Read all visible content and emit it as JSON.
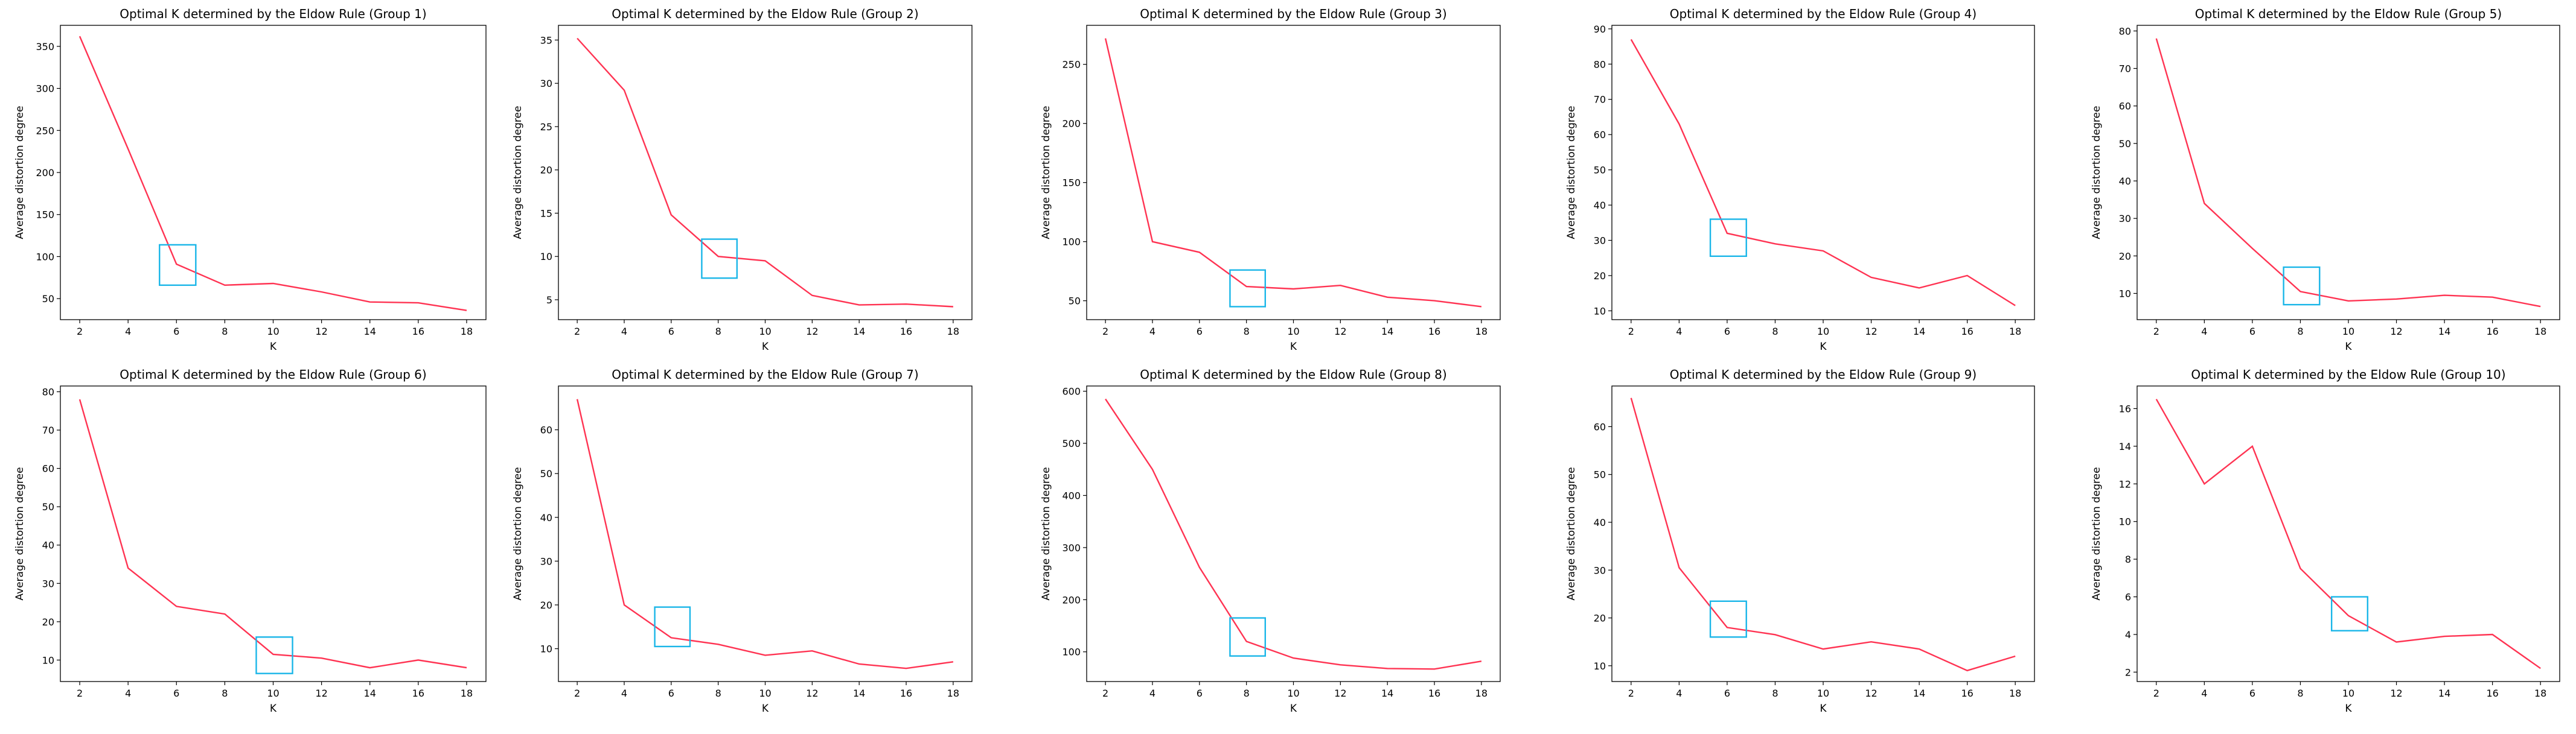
{
  "figure": {
    "line_color": "#ff3352",
    "marker_color": "#1ab6e8"
  },
  "chart_data": [
    {
      "type": "line",
      "title": "Optimal K determined by the Eldow Rule (Group 1)",
      "xlabel": "K",
      "ylabel": "Average distortion degree",
      "x": [
        2,
        4,
        6,
        8,
        10,
        12,
        14,
        16,
        18
      ],
      "y": [
        362,
        228,
        91,
        66,
        68,
        58,
        46,
        45,
        36
      ],
      "xlim": [
        1.2,
        18.8
      ],
      "ylim": [
        25,
        375
      ],
      "yticks": [
        50,
        100,
        150,
        200,
        250,
        300,
        350
      ],
      "xticks": [
        2,
        4,
        6,
        8,
        10,
        12,
        14,
        16,
        18
      ],
      "highlight": {
        "x": [
          5.3,
          6.8
        ],
        "y": [
          66,
          114
        ]
      }
    },
    {
      "type": "line",
      "title": "Optimal K determined by the Eldow Rule (Group 2)",
      "xlabel": "K",
      "ylabel": "Average distortion degree",
      "x": [
        2,
        4,
        6,
        8,
        10,
        12,
        14,
        16,
        18
      ],
      "y": [
        35.2,
        29.2,
        14.8,
        10.0,
        9.5,
        5.5,
        4.4,
        4.5,
        4.2
      ],
      "xlim": [
        1.2,
        18.8
      ],
      "ylim": [
        2.7,
        36.7
      ],
      "yticks": [
        5,
        10,
        15,
        20,
        25,
        30,
        35
      ],
      "xticks": [
        2,
        4,
        6,
        8,
        10,
        12,
        14,
        16,
        18
      ],
      "highlight": {
        "x": [
          7.3,
          8.8
        ],
        "y": [
          7.5,
          12.0
        ]
      }
    },
    {
      "type": "line",
      "title": "Optimal K determined by the Eldow Rule (Group 3)",
      "xlabel": "K",
      "ylabel": "Average distortion degree",
      "x": [
        2,
        4,
        6,
        8,
        10,
        12,
        14,
        16,
        18
      ],
      "y": [
        272,
        100,
        91,
        62,
        60,
        63,
        53,
        50,
        45
      ],
      "xlim": [
        1.2,
        18.8
      ],
      "ylim": [
        34,
        283
      ],
      "yticks": [
        50,
        100,
        150,
        200,
        250
      ],
      "xticks": [
        2,
        4,
        6,
        8,
        10,
        12,
        14,
        16,
        18
      ],
      "highlight": {
        "x": [
          7.3,
          8.8
        ],
        "y": [
          45,
          76
        ]
      }
    },
    {
      "type": "line",
      "title": "Optimal K determined by the Eldow Rule (Group 4)",
      "xlabel": "K",
      "ylabel": "Average distortion degree",
      "x": [
        2,
        4,
        6,
        8,
        10,
        12,
        14,
        16,
        18
      ],
      "y": [
        87,
        63,
        32,
        29,
        27,
        19.5,
        16.5,
        20,
        11.5
      ],
      "xlim": [
        1.2,
        18.8
      ],
      "ylim": [
        7.5,
        91
      ],
      "yticks": [
        10,
        20,
        30,
        40,
        50,
        60,
        70,
        80,
        90
      ],
      "xticks": [
        2,
        4,
        6,
        8,
        10,
        12,
        14,
        16,
        18
      ],
      "highlight": {
        "x": [
          5.3,
          6.8
        ],
        "y": [
          25.5,
          36
        ]
      }
    },
    {
      "type": "line",
      "title": "Optimal K determined by the Eldow Rule (Group 5)",
      "xlabel": "K",
      "ylabel": "Average distortion degree",
      "x": [
        2,
        4,
        6,
        8,
        10,
        12,
        14,
        16,
        18
      ],
      "y": [
        78,
        34,
        22,
        10.5,
        8,
        8.5,
        9.5,
        9,
        6.5
      ],
      "xlim": [
        1.2,
        18.8
      ],
      "ylim": [
        3,
        81.5
      ],
      "yticks": [
        10,
        20,
        30,
        40,
        50,
        60,
        70,
        80
      ],
      "xticks": [
        2,
        4,
        6,
        8,
        10,
        12,
        14,
        16,
        18
      ],
      "highlight": {
        "x": [
          7.3,
          8.8
        ],
        "y": [
          7,
          17
        ]
      }
    },
    {
      "type": "line",
      "title": "Optimal K determined by the Eldow Rule (Group 6)",
      "xlabel": "K",
      "ylabel": "Average distortion degree",
      "x": [
        2,
        4,
        6,
        8,
        10,
        12,
        14,
        16,
        18
      ],
      "y": [
        78,
        34,
        24,
        22,
        11.5,
        10.5,
        8,
        10,
        8
      ],
      "xlim": [
        1.2,
        18.8
      ],
      "ylim": [
        4.4,
        81.5
      ],
      "yticks": [
        10,
        20,
        30,
        40,
        50,
        60,
        70,
        80
      ],
      "xticks": [
        2,
        4,
        6,
        8,
        10,
        12,
        14,
        16,
        18
      ],
      "highlight": {
        "x": [
          9.3,
          10.8
        ],
        "y": [
          6.5,
          16
        ]
      }
    },
    {
      "type": "line",
      "title": "Optimal K determined by the Eldow Rule (Group 7)",
      "xlabel": "K",
      "ylabel": "Average distortion degree",
      "x": [
        2,
        4,
        6,
        8,
        10,
        12,
        14,
        16,
        18
      ],
      "y": [
        67,
        20,
        12.5,
        11,
        8.5,
        9.5,
        6.5,
        5.5,
        7
      ],
      "xlim": [
        1.2,
        18.8
      ],
      "ylim": [
        2.5,
        70
      ],
      "yticks": [
        10,
        20,
        30,
        40,
        50,
        60
      ],
      "xticks": [
        2,
        4,
        6,
        8,
        10,
        12,
        14,
        16,
        18
      ],
      "highlight": {
        "x": [
          5.3,
          6.8
        ],
        "y": [
          10.5,
          19.5
        ]
      }
    },
    {
      "type": "line",
      "title": "Optimal K determined by the Eldow Rule (Group 8)",
      "xlabel": "K",
      "ylabel": "Average distortion degree",
      "x": [
        2,
        4,
        6,
        8,
        10,
        12,
        14,
        16,
        18
      ],
      "y": [
        585,
        450,
        262,
        120,
        88,
        75,
        68,
        67,
        82
      ],
      "xlim": [
        1.2,
        18.8
      ],
      "ylim": [
        43,
        610
      ],
      "yticks": [
        100,
        200,
        300,
        400,
        500,
        600
      ],
      "xticks": [
        2,
        4,
        6,
        8,
        10,
        12,
        14,
        16,
        18
      ],
      "highlight": {
        "x": [
          7.3,
          8.8
        ],
        "y": [
          92,
          165
        ]
      }
    },
    {
      "type": "line",
      "title": "Optimal K determined by the Eldow Rule (Group 9)",
      "xlabel": "K",
      "ylabel": "Average distortion degree",
      "x": [
        2,
        4,
        6,
        8,
        10,
        12,
        14,
        16,
        18
      ],
      "y": [
        66,
        30.5,
        18,
        16.5,
        13.5,
        15,
        13.5,
        9,
        12
      ],
      "xlim": [
        1.2,
        18.8
      ],
      "ylim": [
        6.7,
        68.5
      ],
      "yticks": [
        10,
        20,
        30,
        40,
        50,
        60
      ],
      "xticks": [
        2,
        4,
        6,
        8,
        10,
        12,
        14,
        16,
        18
      ],
      "highlight": {
        "x": [
          5.3,
          6.8
        ],
        "y": [
          16,
          23.5
        ]
      }
    },
    {
      "type": "line",
      "title": "Optimal K determined by the Eldow Rule (Group 10)",
      "xlabel": "K",
      "ylabel": "Average distortion degree",
      "x": [
        2,
        4,
        6,
        8,
        10,
        12,
        14,
        16,
        18
      ],
      "y": [
        16.5,
        12,
        14,
        7.5,
        5,
        3.6,
        3.9,
        4,
        2.2
      ],
      "xlim": [
        1.2,
        18.8
      ],
      "ylim": [
        1.5,
        17.2
      ],
      "yticks": [
        2,
        4,
        6,
        8,
        10,
        12,
        14,
        16
      ],
      "xticks": [
        2,
        4,
        6,
        8,
        10,
        12,
        14,
        16,
        18
      ],
      "highlight": {
        "x": [
          9.3,
          10.8
        ],
        "y": [
          4.2,
          6.0
        ]
      }
    }
  ]
}
